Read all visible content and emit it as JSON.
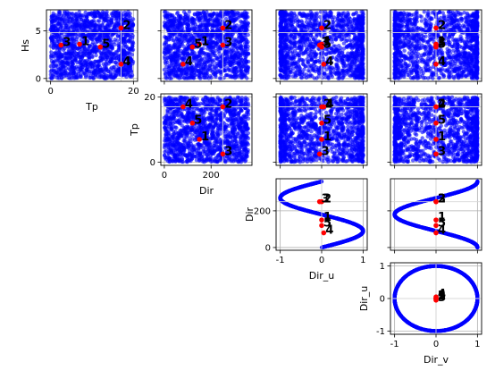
{
  "chart_data": {
    "type": "scatter",
    "variables": [
      "Hs",
      "Tp",
      "Dir",
      "Dir_u",
      "Dir_v"
    ],
    "colors": {
      "points": "#0000ff",
      "highlight": "#ff0000",
      "grid": "#b0b0b0"
    },
    "grid": true,
    "panel_layout": "upper-triangular 4x4 pairs grid",
    "panels": [
      {
        "id": "p00",
        "x": "Tp",
        "y": "Hs",
        "xlabel": "Tp",
        "ylabel": "Hs",
        "xticks": [
          "0",
          "20"
        ],
        "yticks": [
          "0",
          "5"
        ]
      },
      {
        "id": "p01",
        "x": "Dir",
        "y": "Hs",
        "xticks": [],
        "yticks": []
      },
      {
        "id": "p02",
        "x": "Dir_u",
        "y": "Hs",
        "xticks": [],
        "yticks": []
      },
      {
        "id": "p03",
        "x": "Dir_v",
        "y": "Hs",
        "xticks": [],
        "yticks": []
      },
      {
        "id": "p11",
        "x": "Dir",
        "y": "Tp",
        "xlabel": "Dir",
        "ylabel": "Tp",
        "xticks": [
          "0",
          "200"
        ],
        "yticks": [
          "0",
          "20"
        ]
      },
      {
        "id": "p12",
        "x": "Dir_u",
        "y": "Tp",
        "xticks": [],
        "yticks": []
      },
      {
        "id": "p13",
        "x": "Dir_v",
        "y": "Tp",
        "xticks": [],
        "yticks": []
      },
      {
        "id": "p22",
        "x": "Dir_u",
        "y": "Dir",
        "xlabel": "Dir_u",
        "ylabel": "Dir",
        "xticks": [
          "-1",
          "0",
          "1"
        ],
        "yticks": [
          "0",
          "200"
        ]
      },
      {
        "id": "p23",
        "x": "Dir_v",
        "y": "Dir",
        "xticks": [],
        "yticks": []
      },
      {
        "id": "p33",
        "x": "Dir_v",
        "y": "Dir_u",
        "xlabel": "Dir_v",
        "ylabel": "Dir_u",
        "xticks": [
          "-1",
          "0",
          "1"
        ],
        "yticks": [
          "-1",
          "0",
          "1"
        ]
      }
    ],
    "highlight_points": [
      {
        "label": "1",
        "Hs": 3.6,
        "Tp": 7.0,
        "Dir": 150,
        "Dir_u": 0.0,
        "Dir_v": 0.0
      },
      {
        "label": "2",
        "Hs": 5.3,
        "Tp": 17.0,
        "Dir": 250,
        "Dir_u": 0.0,
        "Dir_v": 0.0
      },
      {
        "label": "3",
        "Hs": 3.5,
        "Tp": 2.5,
        "Dir": 250,
        "Dir_u": -0.05,
        "Dir_v": 0.0
      },
      {
        "label": "4",
        "Hs": 1.5,
        "Tp": 17.0,
        "Dir": 80,
        "Dir_u": 0.05,
        "Dir_v": 0.0
      },
      {
        "label": "5",
        "Hs": 3.3,
        "Tp": 12.0,
        "Dir": 120,
        "Dir_u": 0.0,
        "Dir_v": 0.0
      }
    ],
    "crosshair": {
      "Hs": 4.8,
      "Tp": 17.0,
      "Dir": 250,
      "Dir_u": 0.0,
      "Dir_v": 0.0
    }
  }
}
